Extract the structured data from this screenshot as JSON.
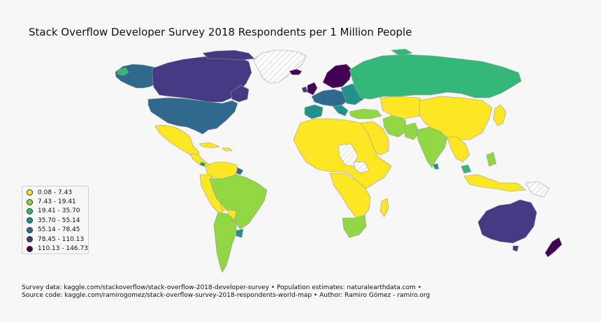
{
  "title": "Stack Overflow Developer Survey 2018 Respondents per 1 Million People",
  "legend": [
    {
      "label": "0.08 - 7.43",
      "color": "#fde725"
    },
    {
      "label": "7.43 - 19.41",
      "color": "#90d743"
    },
    {
      "label": "19.41 - 35.70",
      "color": "#35b779"
    },
    {
      "label": "35.70 - 55.14",
      "color": "#21918c"
    },
    {
      "label": "55.14 - 78.45",
      "color": "#31688e"
    },
    {
      "label": "78.45 - 110.13",
      "color": "#443983"
    },
    {
      "label": "110.13 - 146.73",
      "color": "#440154"
    }
  ],
  "no_data_pattern": "hatched",
  "footer": {
    "line1": "Survey data: kaggle.com/stackoverflow/stack-overflow-2018-developer-survey • Population estimates: naturalearthdata.com •",
    "line2": "Source code: kaggle.com/ramirogomez/stack-overflow-survey-2018-respondents-world-map • Author: Ramiro Gómez - ramiro.org"
  }
}
